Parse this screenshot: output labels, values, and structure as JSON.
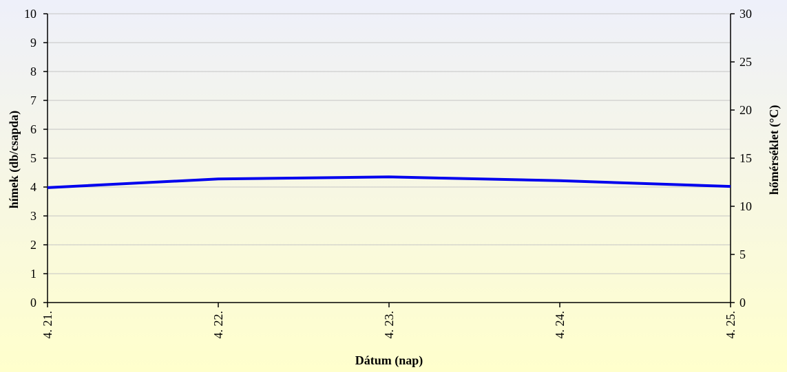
{
  "chart_data": {
    "type": "line",
    "xlabel": "Dátum (nap)",
    "ylabel_left": "hímek (db/csapda)",
    "ylabel_right": "hőmérséklet (°C)",
    "categories": [
      "4. 21.",
      "4. 22.",
      "4. 23.",
      "4. 24.",
      "4. 25."
    ],
    "ylim_left": [
      0,
      10
    ],
    "yticks_left": [
      0,
      1,
      2,
      3,
      4,
      5,
      6,
      7,
      8,
      9,
      10
    ],
    "ylim_right": [
      0,
      30
    ],
    "yticks_right": [
      0,
      5,
      10,
      15,
      20,
      25,
      30
    ],
    "grid": true,
    "series": [
      {
        "axis": "left",
        "color": "#0000ee",
        "values": [
          3.98,
          4.28,
          4.35,
          4.22,
          4.02
        ]
      }
    ]
  }
}
